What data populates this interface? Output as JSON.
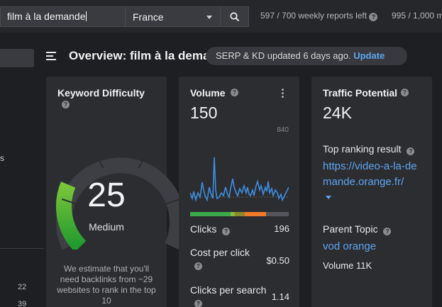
{
  "toolbar": {
    "search_value": "film à la demande",
    "country": "France",
    "quota_text": "597 / 700 weekly reports left",
    "quota_text_2": "995 / 1,000 m"
  },
  "sidebar": {
    "cut_letter": "s",
    "row_numbers": [
      "22",
      "39"
    ]
  },
  "header": {
    "title": "Overview: film à la demande",
    "status_text": "SERP & KD updated 6 days ago.",
    "update_label": "Update"
  },
  "kd_card": {
    "title": "Keyword Difficulty",
    "value": "25",
    "level": "Medium",
    "score_fraction": 0.25,
    "estimate": "We estimate that you'll need backlinks from ~29 websites to rank in the top 10"
  },
  "volume_card": {
    "title": "Volume",
    "value": "150",
    "max_label": "840",
    "clicks_label": "Clicks",
    "clicks_value": "196",
    "cpc_label": "Cost per click",
    "cpc_value": "$0.50",
    "cps_label": "Clicks per search",
    "cps_value": "1.14"
  },
  "tp_card": {
    "title": "Traffic Potential",
    "value": "24K",
    "top_result_label": "Top ranking result",
    "top_result_url": "https://video-a-la-demande.orange.fr/",
    "parent_topic_label": "Parent Topic",
    "parent_topic": "vod orange",
    "parent_volume": "Volume 11K"
  },
  "colors": {
    "accent": "#5ea5f0",
    "gauge_green": "#3aaa3a",
    "clicks_green": "#3aaa4a",
    "clicks_orange": "#f07a2a"
  }
}
